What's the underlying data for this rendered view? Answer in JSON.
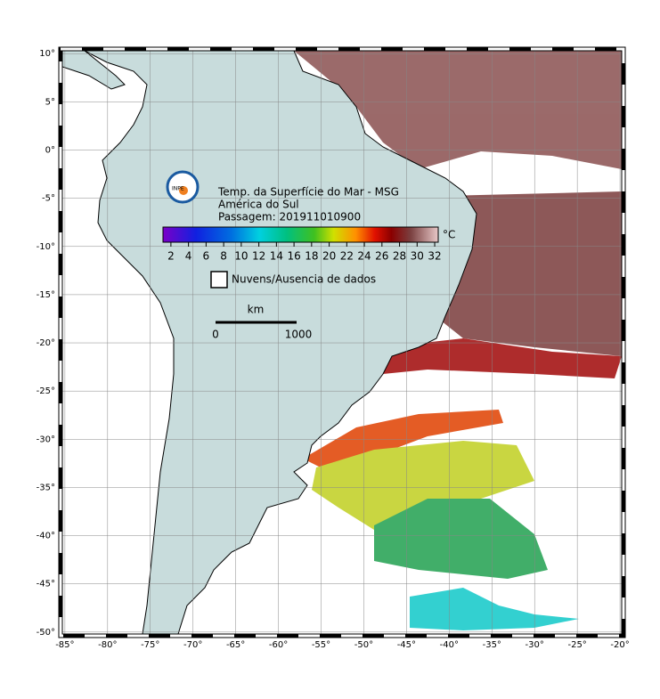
{
  "map": {
    "title": "Temp. da Superfície do Mar - MSG",
    "region": "América do Sul",
    "pass": "Passagem: 201911010900",
    "xlim": [
      -85.3,
      -19.8
    ],
    "ylim": [
      -50.2,
      10.3
    ],
    "x_ticks": [
      {
        "value": -85,
        "label": "-85°"
      },
      {
        "value": -80,
        "label": "-80°"
      },
      {
        "value": -75,
        "label": "-75°"
      },
      {
        "value": -70,
        "label": "-70°"
      },
      {
        "value": -65,
        "label": "-65°"
      },
      {
        "value": -60,
        "label": "-60°"
      },
      {
        "value": -55,
        "label": "-55°"
      },
      {
        "value": -50,
        "label": "-50°"
      },
      {
        "value": -45,
        "label": "-45°"
      },
      {
        "value": -40,
        "label": "-40°"
      },
      {
        "value": -35,
        "label": "-35°"
      },
      {
        "value": -30,
        "label": "-30°"
      },
      {
        "value": -25,
        "label": "-25°"
      },
      {
        "value": -20,
        "label": "-20°"
      }
    ],
    "y_ticks": [
      {
        "value": 10,
        "label": "10°"
      },
      {
        "value": 5,
        "label": "5°"
      },
      {
        "value": 0,
        "label": "0°"
      },
      {
        "value": -5,
        "label": "-5°"
      },
      {
        "value": -10,
        "label": "-10°"
      },
      {
        "value": -15,
        "label": "-15°"
      },
      {
        "value": -20,
        "label": "-20°"
      },
      {
        "value": -25,
        "label": "-25°"
      },
      {
        "value": -30,
        "label": "-30°"
      },
      {
        "value": -35,
        "label": "-35°"
      },
      {
        "value": -40,
        "label": "-40°"
      },
      {
        "value": -45,
        "label": "-45°"
      },
      {
        "value": -50,
        "label": "-50°"
      }
    ],
    "colorbar": {
      "unit": "°C",
      "range": [
        1.1,
        32.4
      ],
      "ticks": [
        2,
        4,
        6,
        8,
        10,
        12,
        14,
        16,
        18,
        20,
        22,
        24,
        26,
        28,
        30,
        32
      ]
    },
    "legend": "Nuvens/Ausencia de dados",
    "scale_bar": {
      "unit": "km",
      "start": "0",
      "end": "1000"
    }
  }
}
